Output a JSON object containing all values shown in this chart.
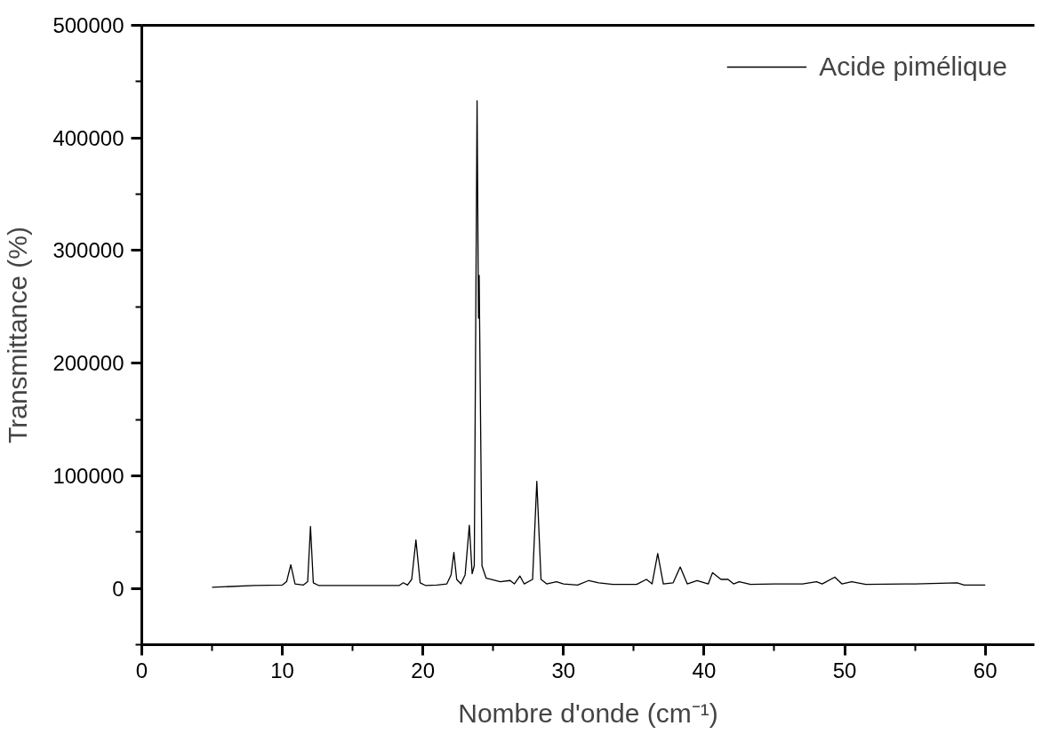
{
  "chart_data": {
    "type": "line",
    "xlabel": "Nombre d'onde (cm⁻¹)",
    "ylabel": "Transmittance (%)",
    "xlim": [
      0,
      63.5
    ],
    "xticks": [
      0,
      10,
      20,
      30,
      40,
      50,
      60
    ],
    "ylim": [
      -50000,
      500000
    ],
    "yticks": [
      0,
      100000,
      200000,
      300000,
      400000,
      500000
    ],
    "grid": false,
    "legend": "top right",
    "marker": "none",
    "line_style": "solid",
    "series": [
      {
        "name": "Acide pimélique",
        "color": "#000000",
        "x": [
          5,
          8,
          10,
          10.3,
          10.6,
          10.9,
          11.5,
          11.8,
          12.0,
          12.2,
          12.6,
          15,
          18.3,
          18.6,
          18.9,
          19.2,
          19.5,
          19.8,
          20.2,
          21,
          21.7,
          22.0,
          22.2,
          22.4,
          22.7,
          23.0,
          23.3,
          23.5,
          23.65,
          23.85,
          23.95,
          24.0,
          24.03,
          24.2,
          24.5,
          25.5,
          26.2,
          26.5,
          26.9,
          27.2,
          27.8,
          28.1,
          28.4,
          28.8,
          29.5,
          30.0,
          31.0,
          31.8,
          32.5,
          33.5,
          35.2,
          35.9,
          36.3,
          36.7,
          37.1,
          37.8,
          38.3,
          38.8,
          39.5,
          40.3,
          40.6,
          41.2,
          41.7,
          42.1,
          42.5,
          43.3,
          45.0,
          47.0,
          48.0,
          48.4,
          49.3,
          49.8,
          50.5,
          51.5,
          55,
          58.0,
          58.5,
          60
        ],
        "values": [
          1000,
          2500,
          3000,
          6000,
          21000,
          4000,
          3000,
          6000,
          55000,
          5000,
          2500,
          2500,
          2500,
          5000,
          3000,
          8000,
          43000,
          5000,
          2500,
          3000,
          4000,
          12000,
          32000,
          8000,
          4000,
          12000,
          56000,
          13000,
          20000,
          433000,
          240000,
          278000,
          237000,
          20000,
          9000,
          6000,
          7000,
          4000,
          11000,
          4000,
          8000,
          95000,
          8000,
          4000,
          6000,
          4000,
          3000,
          7000,
          5000,
          3500,
          3500,
          8000,
          4000,
          31000,
          4000,
          5000,
          19000,
          4000,
          7000,
          4000,
          14000,
          8000,
          8000,
          4000,
          6000,
          3500,
          4000,
          4000,
          6000,
          4000,
          10000,
          4000,
          6000,
          3500,
          4000,
          5000,
          3000,
          3000
        ]
      }
    ]
  }
}
